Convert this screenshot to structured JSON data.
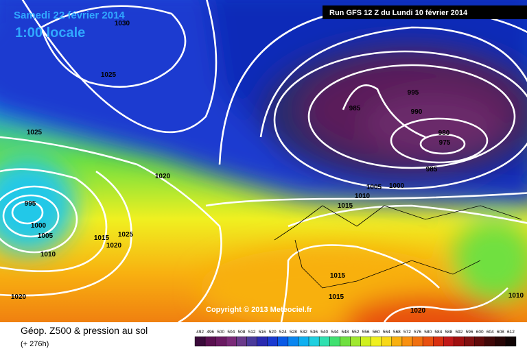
{
  "header": {
    "date": "Samedi 22 février 2014",
    "time": "1:00 locale",
    "run": "Run GFS 12 Z du Lundi 10 février 2014"
  },
  "copyright": "Copyright © 2013 Meteociel.fr",
  "footer": {
    "title": "Géop. Z500 & pression au sol",
    "lead": "(+ 276h)"
  },
  "isobar_labels": [
    "1030",
    "1025",
    "1025",
    "1020",
    "995",
    "1000",
    "1005",
    "1010",
    "1015",
    "1020",
    "1025",
    "1020",
    "995",
    "985",
    "990",
    "980",
    "975",
    "985",
    "1005",
    "1000",
    "1010",
    "1015",
    "1015",
    "1015",
    "1020",
    "1010"
  ],
  "scale": {
    "labels": [
      "492",
      "496",
      "500",
      "504",
      "508",
      "512",
      "516",
      "520",
      "524",
      "528",
      "532",
      "536",
      "540",
      "544",
      "548",
      "552",
      "556",
      "560",
      "564",
      "568",
      "572",
      "576",
      "580",
      "584",
      "588",
      "592",
      "596",
      "600",
      "604",
      "608",
      "612"
    ],
    "colors": [
      "#3a0a3a",
      "#5a1050",
      "#6a1a62",
      "#7a2a78",
      "#6a3a8a",
      "#4a3a9a",
      "#2a2ab0",
      "#1a3ad0",
      "#0a5ae6",
      "#0a86f0",
      "#10b0f0",
      "#20d0e0",
      "#30e0b0",
      "#40e070",
      "#70e040",
      "#a0e830",
      "#d0f020",
      "#f0f020",
      "#f8d818",
      "#f8b010",
      "#f89010",
      "#f07010",
      "#e85010",
      "#d83010",
      "#c01818",
      "#a01010",
      "#801010",
      "#600a0a",
      "#400808",
      "#280606",
      "#100404"
    ]
  }
}
